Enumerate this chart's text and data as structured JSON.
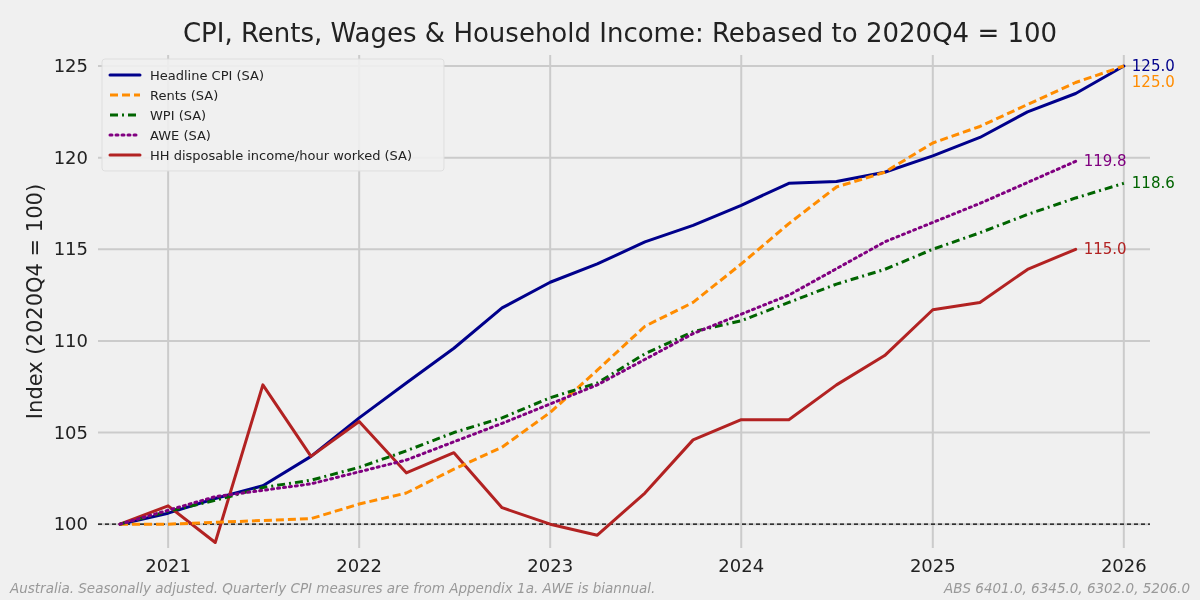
{
  "chart_data": {
    "type": "line",
    "title": "CPI, Rents, Wages & Household Income: Rebased to 2020Q4 = 100",
    "ylabel": "Index (2020Q4 = 100)",
    "x": [
      "2020-10",
      "2021-01",
      "2021-04",
      "2021-07",
      "2021-10",
      "2022-01",
      "2022-04",
      "2022-07",
      "2022-10",
      "2023-01",
      "2023-04",
      "2023-07",
      "2023-10",
      "2024-01",
      "2024-04",
      "2024-07",
      "2024-10",
      "2025-01",
      "2025-04",
      "2025-07",
      "2025-10",
      "2026-01"
    ],
    "series": [
      {
        "name": "Headline CPI (SA)",
        "color": "#00008b",
        "line_style": "solid",
        "values": [
          100,
          100.6,
          101.4,
          102.1,
          103.7,
          105.8,
          107.7,
          109.6,
          111.8,
          113.2,
          114.2,
          115.4,
          116.3,
          117.4,
          118.6,
          118.7,
          119.2,
          120.1,
          121.1,
          122.5,
          123.5,
          125.0
        ],
        "value_labels": [
          null,
          null,
          null,
          null,
          null,
          null,
          null,
          null,
          null,
          null,
          null,
          null,
          null,
          null,
          null,
          null,
          null,
          null,
          null,
          null,
          null,
          "125.0"
        ]
      },
      {
        "name": "Rents (SA)",
        "color": "#ff8c00",
        "line_style": "dashed",
        "values": [
          100,
          100.0,
          100.1,
          100.2,
          100.3,
          101.1,
          101.7,
          103.0,
          104.2,
          106.1,
          108.4,
          110.8,
          112.1,
          114.2,
          116.4,
          118.4,
          119.2,
          120.8,
          121.7,
          122.9,
          124.1,
          125.0
        ],
        "value_labels": [
          null,
          null,
          null,
          null,
          null,
          null,
          null,
          null,
          null,
          null,
          null,
          null,
          null,
          null,
          null,
          null,
          null,
          null,
          null,
          null,
          null,
          "125.0"
        ]
      },
      {
        "name": "WPI (SA)",
        "color": "#006400",
        "line_style": "dashdot",
        "values": [
          100,
          100.7,
          101.3,
          102.0,
          102.4,
          103.1,
          104.0,
          105.0,
          105.8,
          106.9,
          107.7,
          109.3,
          110.5,
          111.1,
          112.1,
          113.1,
          113.9,
          115.0,
          115.9,
          116.9,
          117.8,
          118.6
        ],
        "value_labels": [
          null,
          null,
          null,
          null,
          null,
          null,
          null,
          null,
          null,
          null,
          null,
          null,
          null,
          null,
          null,
          null,
          null,
          null,
          null,
          null,
          null,
          "118.6"
        ]
      },
      {
        "name": "AWE (SA)",
        "color": "#800080",
        "line_style": "dotted",
        "x": [
          "2020-10",
          "2021-04",
          "2021-10",
          "2022-04",
          "2022-10",
          "2023-04",
          "2023-10",
          "2024-04",
          "2024-10",
          "2025-04",
          "2025-10"
        ],
        "values": [
          100,
          101.5,
          102.2,
          103.5,
          105.5,
          107.6,
          110.4,
          112.5,
          115.4,
          117.5,
          119.8
        ],
        "value_labels": [
          null,
          null,
          null,
          null,
          null,
          null,
          null,
          null,
          null,
          null,
          "119.8"
        ]
      },
      {
        "name": "HH disposable income/hour worked (SA)",
        "color": "#b22222",
        "line_style": "solid",
        "x": [
          "2020-10",
          "2021-01",
          "2021-04",
          "2021-07",
          "2021-10",
          "2022-01",
          "2022-04",
          "2022-07",
          "2022-10",
          "2023-01",
          "2023-04",
          "2023-07",
          "2023-10",
          "2024-01",
          "2024-04",
          "2024-07",
          "2024-10",
          "2025-01",
          "2025-04",
          "2025-07",
          "2025-10"
        ],
        "values": [
          100,
          101.0,
          99.0,
          107.6,
          103.7,
          105.6,
          102.8,
          103.9,
          100.9,
          100.0,
          99.4,
          101.7,
          104.6,
          105.7,
          105.7,
          107.6,
          109.2,
          111.7,
          112.1,
          113.9,
          115.0
        ],
        "value_labels": [
          null,
          null,
          null,
          null,
          null,
          null,
          null,
          null,
          null,
          null,
          null,
          null,
          null,
          null,
          null,
          null,
          null,
          null,
          null,
          null,
          "115.0"
        ]
      }
    ],
    "xlim": [
      "2020-08-20",
      "2026-02-20"
    ],
    "xticks": [
      "2021",
      "2022",
      "2023",
      "2024",
      "2025",
      "2026"
    ],
    "ylim": [
      98.7,
      125.6
    ],
    "yticks": [
      100,
      105,
      110,
      115,
      120,
      125
    ],
    "ref_lines": [
      {
        "axis": "y",
        "value": 100,
        "color": "#000000",
        "line_style": "dashed"
      }
    ],
    "grid": true,
    "legend": "top left",
    "annotations": [
      "Australia. Seasonally adjusted. Quarterly CPI measures are from Appendix 1a. AWE is biannual.",
      "ABS 6401.0, 6345.0, 6302.0, 5206.0"
    ]
  }
}
